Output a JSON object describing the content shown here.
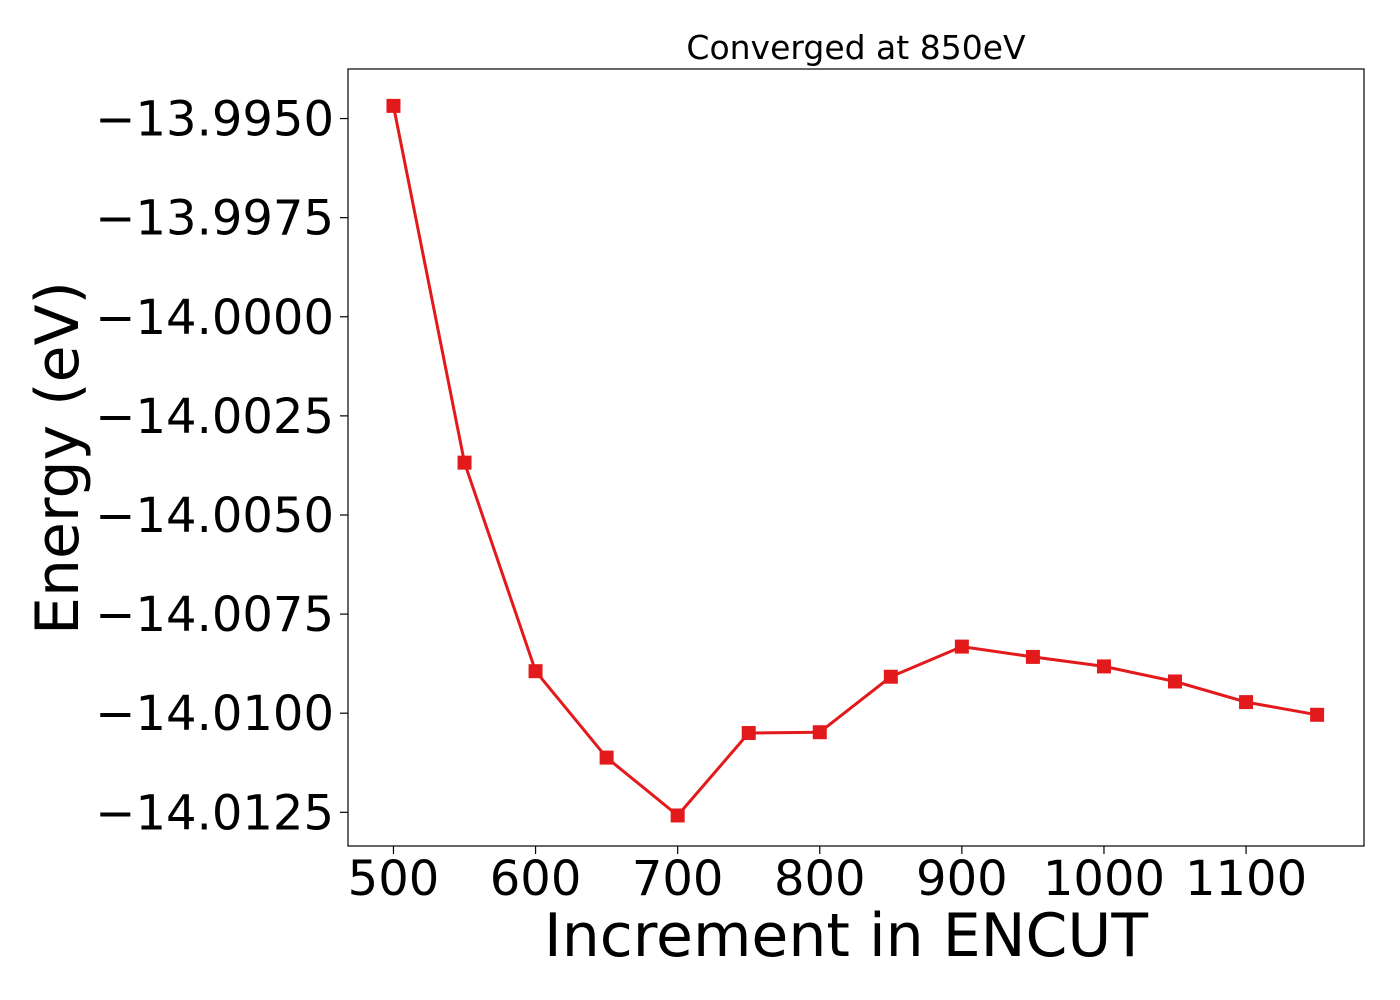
{
  "chart_data": {
    "type": "line",
    "title": "Converged at 850eV",
    "xlabel": "Increment in ENCUT",
    "ylabel": "Energy (eV)",
    "x": [
      500,
      550,
      600,
      650,
      700,
      750,
      800,
      850,
      900,
      950,
      1000,
      1050,
      1100,
      1150
    ],
    "series": [
      {
        "values": [
          -13.99468,
          -14.00368,
          -14.00894,
          -14.01112,
          -14.01258,
          -14.0105,
          -14.01048,
          -14.00908,
          -14.00832,
          -14.00858,
          -14.00882,
          -14.0092,
          -14.00972,
          -14.01004
        ],
        "color": "#e31a1c",
        "marker": "square"
      }
    ],
    "xticks": [
      500,
      600,
      700,
      800,
      900,
      1000,
      1100
    ],
    "xtick_labels": [
      "500",
      "600",
      "700",
      "800",
      "900",
      "1000",
      "1100"
    ],
    "yticks": [
      -13.995,
      -13.9975,
      -14.0,
      -14.0025,
      -14.005,
      -14.0075,
      -14.01,
      -14.0125
    ],
    "ytick_labels": [
      "−13.9950",
      "−13.9975",
      "−14.0000",
      "−14.0025",
      "−14.0050",
      "−14.0075",
      "−14.0100",
      "−14.0125"
    ],
    "xlim": [
      468,
      1183
    ],
    "ylim": [
      -14.01335,
      -13.99375
    ],
    "grid": false,
    "legend": "none"
  }
}
